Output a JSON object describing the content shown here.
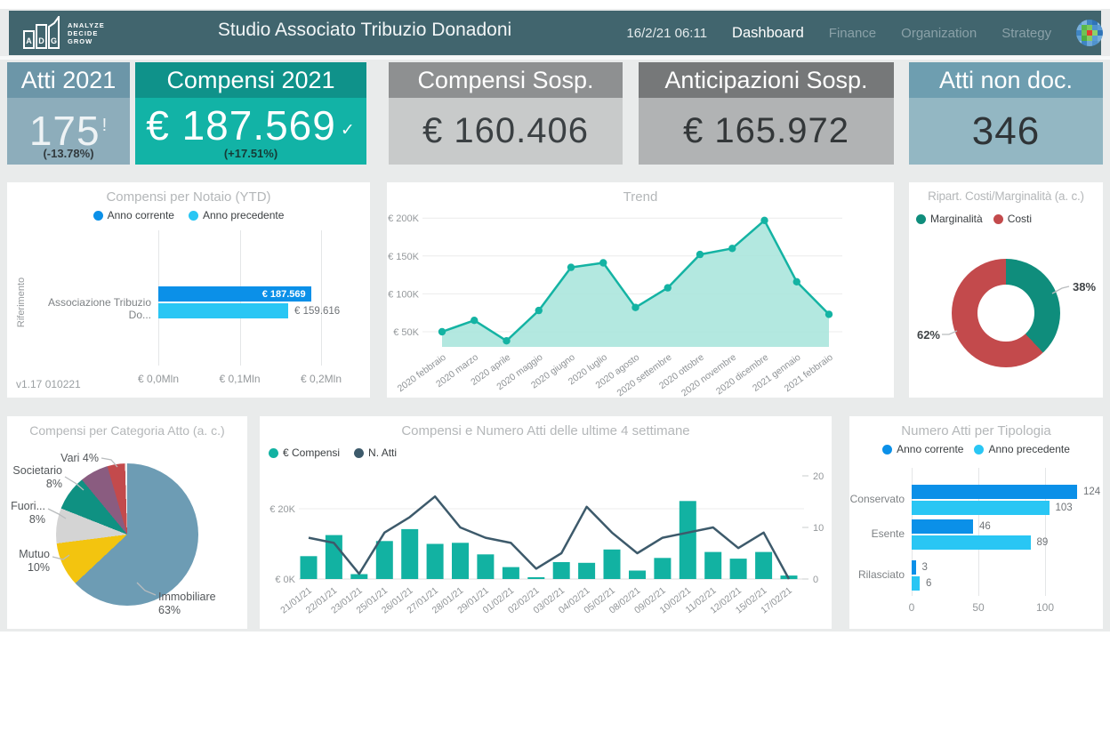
{
  "header": {
    "logo_letters": [
      "A",
      "D",
      "G"
    ],
    "logo_tagline": [
      "ANALYZE",
      "DECIDE",
      "GROW"
    ],
    "title": "Studio Associato Tribuzio Donadoni",
    "datetime": "16/2/21 06:11",
    "nav": [
      {
        "label": "Dashboard",
        "active": true
      },
      {
        "label": "Finance",
        "active": false
      },
      {
        "label": "Organization",
        "active": false
      },
      {
        "label": "Strategy",
        "active": false
      }
    ],
    "registered_mark": "®"
  },
  "kpis": [
    {
      "title": "Atti 2021",
      "value": "175",
      "indicator": "!",
      "delta": "(-13.78%)",
      "header_color": "#6c96a8",
      "body_color": "#8dadbb",
      "title_color": "#ffffff",
      "value_color": "#eef3f5",
      "delta_color": "#323a3e"
    },
    {
      "title": "Compensi 2021",
      "value": "€ 187.569",
      "indicator": "✓",
      "delta": "(+17.51%)",
      "header_color": "#0f928a",
      "body_color": "#12b3a6",
      "title_color": "#ffffff",
      "value_color": "#ffffff",
      "delta_color": "#153b36"
    },
    {
      "title": "Compensi Sosp.",
      "value": "€ 160.406",
      "indicator": "",
      "delta": "",
      "header_color": "#8e9091",
      "body_color": "#c8caca",
      "title_color": "#ffffff",
      "value_color": "#3b4043",
      "delta_color": "#333333"
    },
    {
      "title": "Anticipazioni Sosp.",
      "value": "€ 165.972",
      "indicator": "",
      "delta": "",
      "header_color": "#767879",
      "body_color": "#b1b3b4",
      "title_color": "#ffffff",
      "value_color": "#333739",
      "delta_color": "#333333"
    },
    {
      "title": "Atti non doc.",
      "value": "346",
      "indicator": "",
      "delta": "",
      "header_color": "#6e9eb0",
      "body_color": "#93b7c3",
      "title_color": "#ffffff",
      "value_color": "#2f3437",
      "delta_color": "#333333"
    }
  ],
  "chart_data": [
    {
      "id": "notaio",
      "type": "bar",
      "orientation": "horizontal",
      "title": "Compensi per Notaio (YTD)",
      "axis_label": "Riferimento",
      "categories": [
        "Associazione Tribuzio Do..."
      ],
      "series": [
        {
          "name": "Anno corrente",
          "color": "#0b90e8",
          "values": [
            187569
          ],
          "labels": [
            "€ 187.569"
          ]
        },
        {
          "name": "Anno precedente",
          "color": "#29c6f4",
          "values": [
            159616
          ],
          "labels": [
            "€ 159.616"
          ]
        }
      ],
      "x_ticks": [
        "€ 0,0Mln",
        "€ 0,1Mln",
        "€ 0,2Mln"
      ],
      "x_tick_values": [
        0,
        100000,
        200000
      ],
      "xmax": 220000,
      "version": "v1.17 010221"
    },
    {
      "id": "trend",
      "type": "area",
      "title": "Trend",
      "x": [
        "2020 febbraio",
        "2020 marzo",
        "2020 aprile",
        "2020 maggio",
        "2020 giugno",
        "2020 luglio",
        "2020 agosto",
        "2020 settembre",
        "2020 ottobre",
        "2020 novembre",
        "2020 dicembre",
        "2021 gennaio",
        "2021 febbraio"
      ],
      "values": [
        50000,
        65000,
        38000,
        78000,
        135000,
        141000,
        82000,
        108000,
        152000,
        160000,
        197000,
        116000,
        73000
      ],
      "y_ticks": [
        "€ 50K",
        "€ 100K",
        "€ 150K",
        "€ 200K"
      ],
      "y_tick_values": [
        50000,
        100000,
        150000,
        200000
      ],
      "ylim": [
        30000,
        212000
      ],
      "line_color": "#14b3a3",
      "fill_color": "#abe5dd"
    },
    {
      "id": "costi-marginalita",
      "type": "pie",
      "donut": true,
      "title": "Ripart. Costi/Marginalità (a. c.)",
      "slices": [
        {
          "label": "Marginalità",
          "pct": 38,
          "color": "#0f8d7c",
          "data_label": "38%"
        },
        {
          "label": "Costi",
          "pct": 62,
          "color": "#c34a4c",
          "data_label": "62%"
        }
      ],
      "legend_position": "top-left"
    },
    {
      "id": "categoria-atto",
      "type": "pie",
      "donut": false,
      "title": "Compensi per Categoria Atto (a. c.)",
      "slices": [
        {
          "label": "Immobiliare",
          "pct": 63,
          "color": "#6d9cb4",
          "data_label": "63%"
        },
        {
          "label": "Mutuo",
          "pct": 10,
          "color": "#f3c40f",
          "data_label": "10%"
        },
        {
          "label": "Fuori...",
          "pct": 8,
          "color": "#d4d4d4",
          "data_label": "8%"
        },
        {
          "label": "Societario",
          "pct": 8,
          "color": "#0f9182",
          "data_label": "8%"
        },
        {
          "label": "",
          "pct": 6.5,
          "color": "#8a5c80",
          "data_label": ""
        },
        {
          "label": "Vari",
          "pct": 4,
          "color": "#c34a4c",
          "data_label": "4%"
        },
        {
          "label": "",
          "pct": 0.5,
          "color": "#f0f1f1",
          "data_label": ""
        }
      ]
    },
    {
      "id": "compensi-atti-settimane",
      "type": "combo",
      "title": "Compensi e Numero Atti delle ultime 4 settimane",
      "categories": [
        "21/01/21",
        "22/01/21",
        "23/01/21",
        "25/01/21",
        "26/01/21",
        "27/01/21",
        "28/01/21",
        "29/01/21",
        "01/02/21",
        "02/02/21",
        "03/02/21",
        "04/02/21",
        "05/02/21",
        "08/02/21",
        "09/02/21",
        "10/02/21",
        "11/02/21",
        "12/02/21",
        "15/02/21",
        "17/02/21"
      ],
      "bar_series": {
        "name": "€ Compensi",
        "color": "#12b2a2",
        "values_eur_k": [
          6.5,
          12.5,
          1.4,
          10.8,
          14.2,
          10.0,
          10.3,
          7.0,
          3.4,
          0.5,
          4.8,
          4.6,
          8.4,
          2.4,
          6.0,
          22.2,
          7.7,
          5.8,
          7.7,
          1.0
        ]
      },
      "line_series": {
        "name": "N. Atti",
        "color": "#3d5a6b",
        "values": [
          8,
          7,
          1,
          9,
          12,
          16,
          10,
          8,
          7,
          2,
          5,
          14,
          9,
          5,
          8,
          9,
          10,
          6,
          9,
          0
        ]
      },
      "left_ticks": [
        "€ 20K",
        "€ 0K"
      ],
      "left_tick_values": [
        20,
        0
      ],
      "right_ticks": [
        "20",
        "10",
        "0"
      ],
      "right_tick_values": [
        20,
        10,
        0
      ]
    },
    {
      "id": "tipologia",
      "type": "bar",
      "orientation": "horizontal",
      "title": "Numero Atti per Tipologia",
      "categories": [
        "Conservato",
        "Esente",
        "Rilasciato"
      ],
      "series": [
        {
          "name": "Anno corrente",
          "color": "#0b90e8",
          "values": [
            124,
            46,
            3
          ]
        },
        {
          "name": "Anno precedente",
          "color": "#29c6f4",
          "values": [
            103,
            89,
            6
          ]
        }
      ],
      "x_ticks": [
        "0",
        "50",
        "100"
      ],
      "x_tick_values": [
        0,
        50,
        100
      ],
      "xmax": 135
    }
  ],
  "colors": {
    "topbar": "#41656e",
    "canvas": "#e9ebeb",
    "accent_teal": "#12b2a2",
    "accent_blue": "#0b90e8",
    "accent_lightblue": "#29c6f4",
    "slate_line": "#3d5a6b",
    "red": "#c34a4c",
    "donut_teal": "#0f8d7c"
  }
}
